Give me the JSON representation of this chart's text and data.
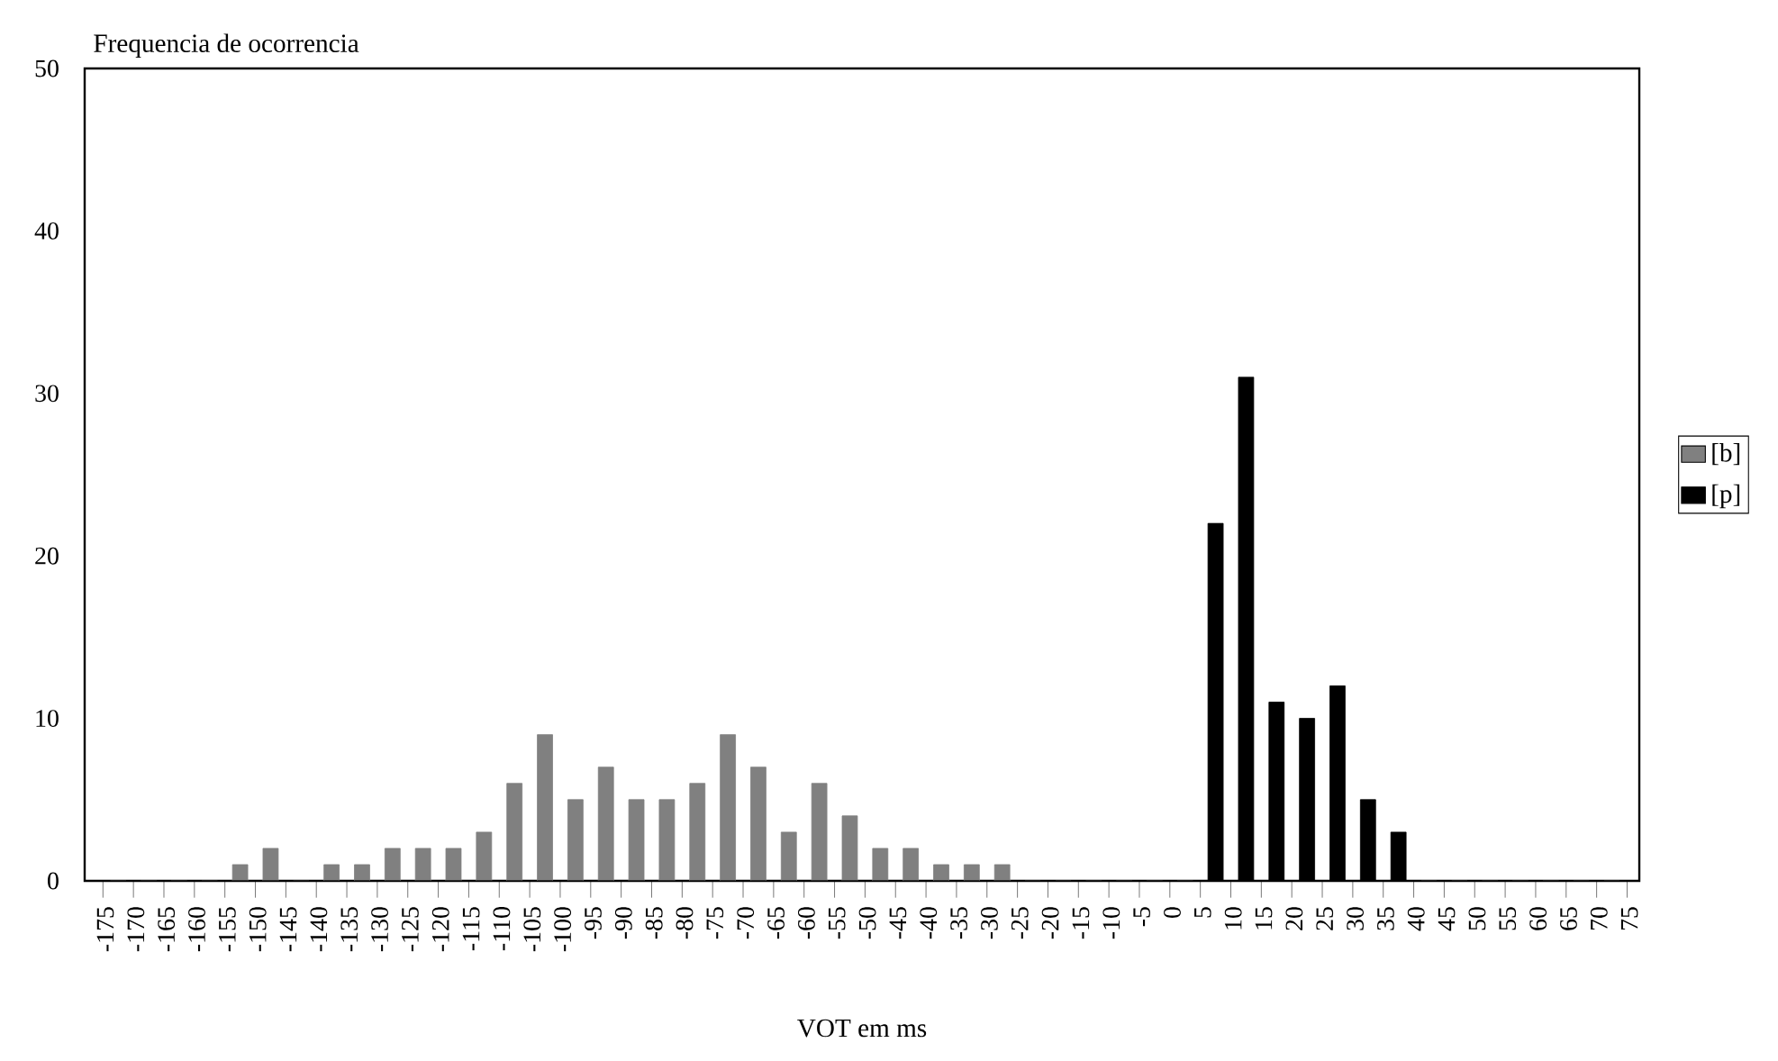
{
  "chart_data": {
    "type": "histogram",
    "ylabel": "Frequencia de ocorrencia",
    "xlabel": "VOT em ms",
    "bins": [
      -175,
      -170,
      -165,
      -160,
      -155,
      -150,
      -145,
      -140,
      -135,
      -130,
      -125,
      -120,
      -115,
      -110,
      -105,
      -100,
      -95,
      -90,
      -85,
      -80,
      -75,
      -70,
      -65,
      -60,
      -55,
      -50,
      -45,
      -40,
      -35,
      -30,
      -25,
      -20,
      -15,
      -10,
      -5,
      0,
      5,
      10,
      15,
      20,
      25,
      30,
      35,
      40,
      45,
      50,
      55,
      60,
      65,
      70,
      75
    ],
    "series": [
      {
        "name": "[b]",
        "color": "#808080",
        "values": [
          0,
          0,
          0,
          0,
          1,
          2,
          0,
          1,
          1,
          2,
          2,
          2,
          3,
          6,
          9,
          5,
          7,
          5,
          5,
          6,
          9,
          7,
          3,
          6,
          4,
          2,
          2,
          1,
          1,
          1,
          0,
          0,
          0,
          0,
          0,
          0,
          0,
          0,
          0,
          0,
          0,
          0,
          0,
          0,
          0,
          0,
          0,
          0,
          0,
          0
        ]
      },
      {
        "name": "[p]",
        "color": "#000000",
        "values": [
          0,
          0,
          0,
          0,
          0,
          0,
          0,
          0,
          0,
          0,
          0,
          0,
          0,
          0,
          0,
          0,
          0,
          0,
          0,
          0,
          0,
          0,
          0,
          0,
          0,
          0,
          0,
          0,
          0,
          0,
          0,
          0,
          0,
          0,
          0,
          0,
          22,
          31,
          11,
          10,
          12,
          5,
          3,
          0,
          0,
          0,
          0,
          0,
          0,
          0
        ]
      }
    ],
    "xlim": [
      -178,
      77
    ],
    "xticks": [
      -175,
      -170,
      -165,
      -160,
      -155,
      -150,
      -145,
      -140,
      -135,
      -130,
      -125,
      -120,
      -115,
      -110,
      -105,
      -100,
      -95,
      -90,
      -85,
      -80,
      -75,
      -70,
      -65,
      -60,
      -55,
      -50,
      -45,
      -40,
      -35,
      -30,
      -25,
      -20,
      -15,
      -10,
      -5,
      0,
      5,
      10,
      15,
      20,
      25,
      30,
      35,
      40,
      45,
      50,
      55,
      60,
      65,
      70,
      75
    ],
    "ylim": [
      0,
      50
    ],
    "yticks": [
      0,
      10,
      20,
      30,
      40,
      50
    ],
    "grid": false,
    "legend": "right"
  }
}
